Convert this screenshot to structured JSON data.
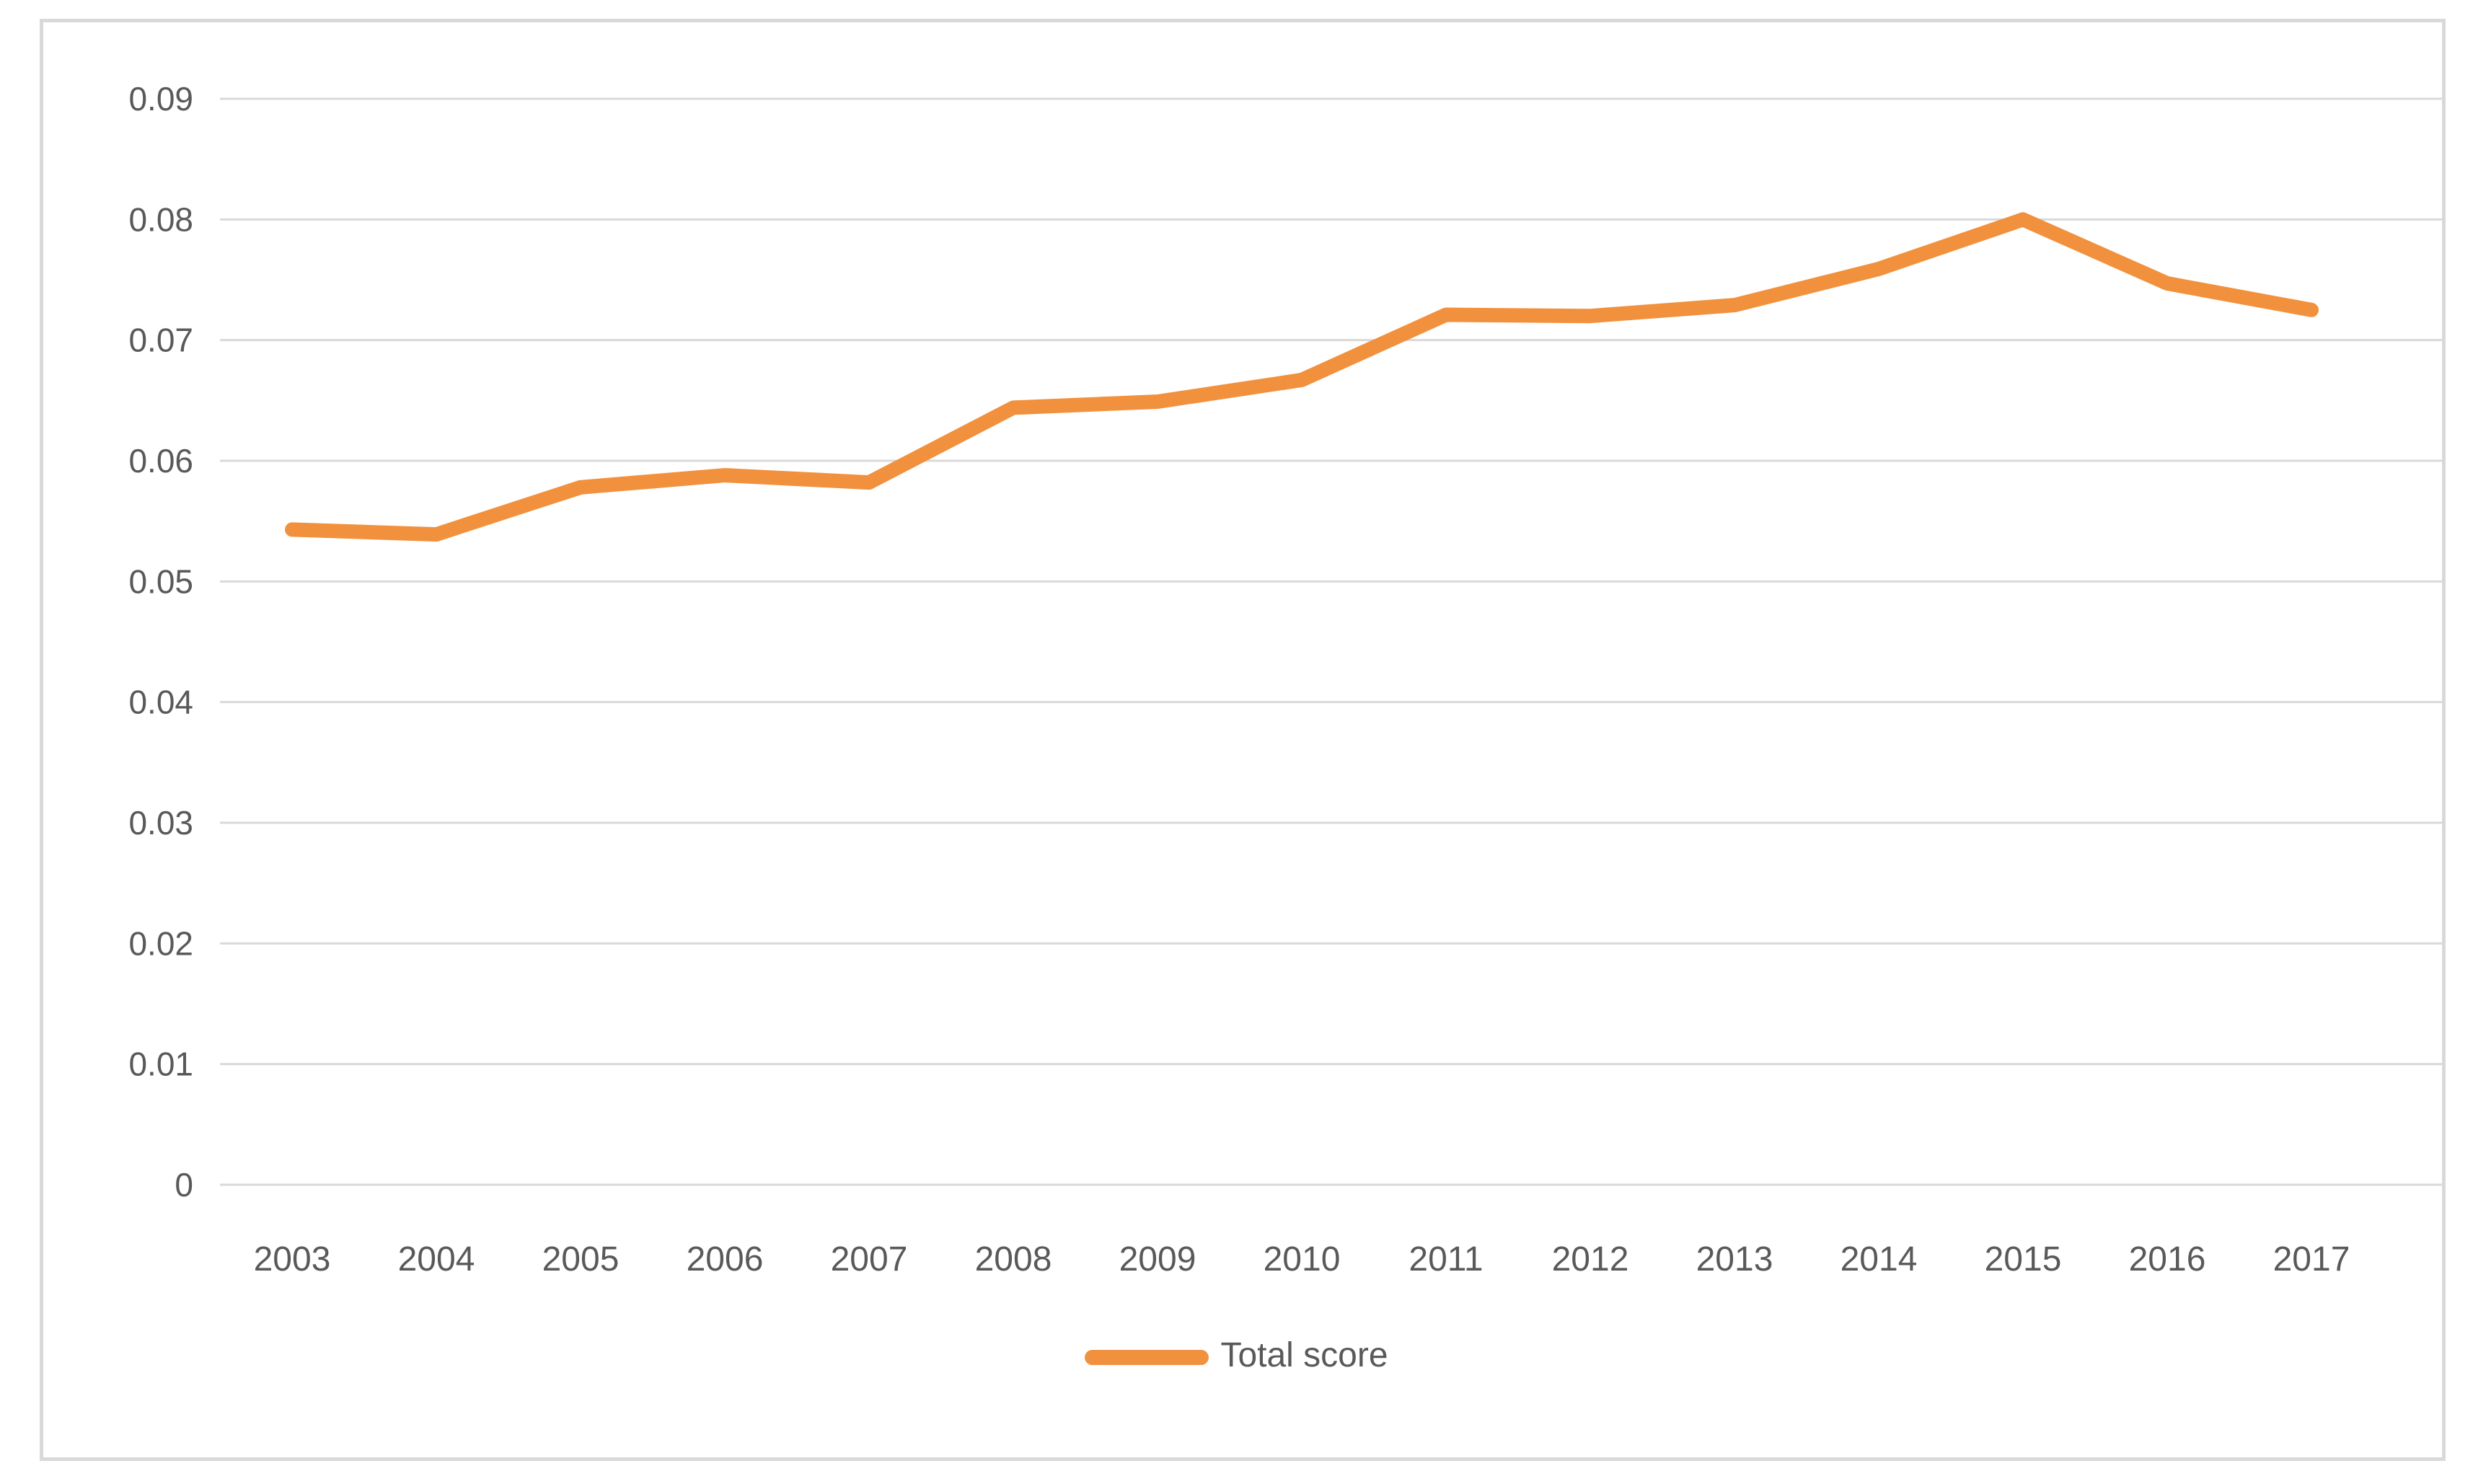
{
  "chart_data": {
    "type": "line",
    "title": "",
    "xlabel": "",
    "ylabel": "",
    "categories": [
      "2003",
      "2004",
      "2005",
      "2006",
      "2007",
      "2008",
      "2009",
      "2010",
      "2011",
      "2012",
      "2013",
      "2014",
      "2015",
      "2016",
      "2017"
    ],
    "series": [
      {
        "name": "Total score",
        "values": [
          0.0543,
          0.0539,
          0.0578,
          0.0588,
          0.0582,
          0.0644,
          0.0649,
          0.0667,
          0.0721,
          0.072,
          0.0729,
          0.0759,
          0.08,
          0.0747,
          0.0725
        ]
      }
    ],
    "ylim": [
      0,
      0.09
    ],
    "ytick_step": 0.01,
    "ytick_labels": [
      "0",
      "0.01",
      "0.02",
      "0.03",
      "0.04",
      "0.05",
      "0.06",
      "0.07",
      "0.08",
      "0.09"
    ],
    "grid": true,
    "legend_position": "bottom-center",
    "colors": {
      "line": "#f2913d",
      "gridline": "#d9d9d9",
      "tick_label": "#595959",
      "frame_border": "#d9d9d9",
      "background": "#ffffff"
    }
  },
  "legend": {
    "items": [
      {
        "label": "Total score",
        "color": "#f2913d"
      }
    ]
  }
}
